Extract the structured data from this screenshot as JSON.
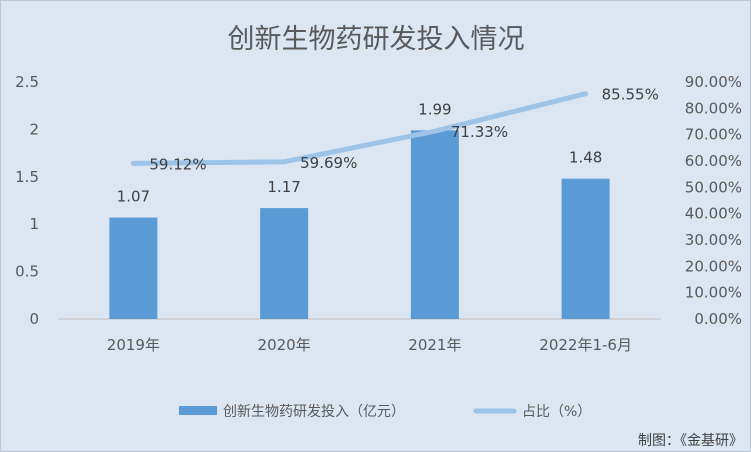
{
  "chart_data": {
    "type": "bar",
    "title": "创新生物药研发投入情况",
    "categories": [
      "2019年",
      "2020年",
      "2021年",
      "2022年1-6月"
    ],
    "series": [
      {
        "name": "创新生物药研发投入（亿元）",
        "type": "bar",
        "axis": "left",
        "values": [
          1.07,
          1.17,
          1.99,
          1.48
        ],
        "labels": [
          "1.07",
          "1.17",
          "1.99",
          "1.48"
        ],
        "color": "#5b9bd5"
      },
      {
        "name": "占比（%）",
        "type": "line",
        "axis": "right",
        "values": [
          59.12,
          59.69,
          71.33,
          85.55
        ],
        "labels": [
          "59.12%",
          "59.69%",
          "71.33%",
          "85.55%"
        ],
        "color": "#9dc3e6"
      }
    ],
    "y_left": {
      "range": [
        0,
        2.5
      ],
      "ticks": [
        "0",
        "0.5",
        "1",
        "1.5",
        "2",
        "2.5"
      ]
    },
    "y_right": {
      "range": [
        0,
        90
      ],
      "ticks": [
        "0.00%",
        "10.00%",
        "20.00%",
        "30.00%",
        "40.00%",
        "50.00%",
        "60.00%",
        "70.00%",
        "80.00%",
        "90.00%"
      ]
    },
    "grid": false,
    "legend_position": "bottom",
    "background": "#dce6f2"
  },
  "credit": "制图：《金基研》"
}
